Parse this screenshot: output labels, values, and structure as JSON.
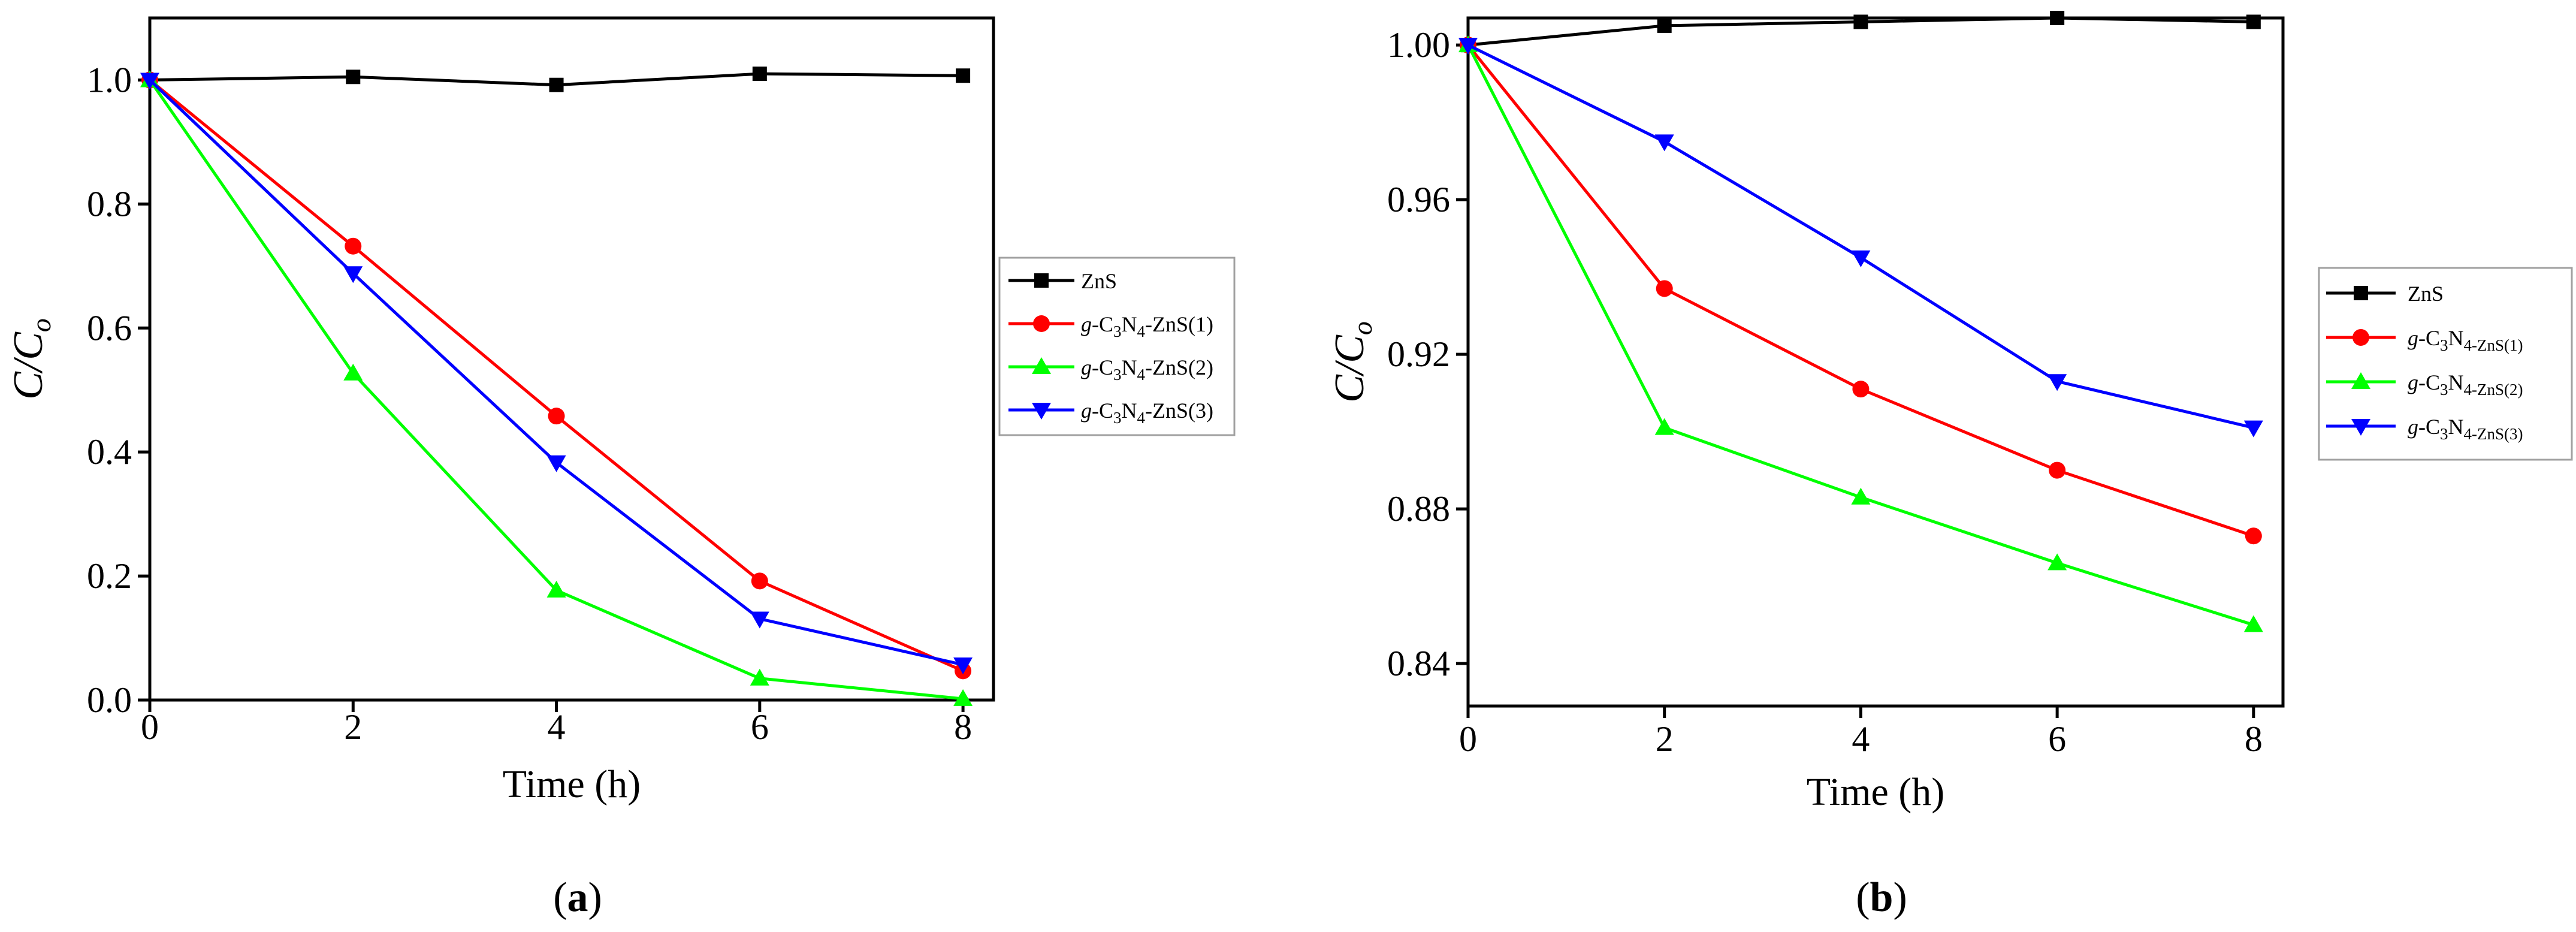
{
  "chart_data": [
    {
      "type": "line",
      "panel_label": "a",
      "title": "",
      "xlabel": "Time (h)",
      "ylabel": {
        "base": "C/C",
        "sub": "o"
      },
      "xlim": [
        0,
        8.3
      ],
      "ylim": [
        0,
        1.1
      ],
      "xticks": [
        0,
        2,
        4,
        6,
        8
      ],
      "xtick_labels": [
        "0",
        "2",
        "4",
        "6",
        "8"
      ],
      "yticks": [
        0,
        0.2,
        0.4,
        0.6,
        0.8,
        1.0
      ],
      "ytick_labels": [
        "0.0",
        "0.2",
        "0.4",
        "0.6",
        "0.8",
        "1.0"
      ],
      "x": [
        0,
        2,
        4,
        6,
        8
      ],
      "series": [
        {
          "name": "ZnS",
          "color": "#000000",
          "marker": "square",
          "values": [
            1.0,
            1.005,
            0.992,
            1.01,
            1.007
          ]
        },
        {
          "name": "g-C3N4-ZnS(1)",
          "color": "#ff0000",
          "marker": "circle",
          "values": [
            1.0,
            0.732,
            0.458,
            0.192,
            0.047
          ]
        },
        {
          "name": "g-C3N4-ZnS(2)",
          "color": "#00ff00",
          "marker": "triangle-up",
          "values": [
            1.0,
            0.527,
            0.177,
            0.035,
            0.002
          ]
        },
        {
          "name": "g-C3N4-ZnS(3)",
          "color": "#0000ff",
          "marker": "triangle-down",
          "values": [
            1.0,
            0.688,
            0.383,
            0.131,
            0.057
          ]
        }
      ],
      "legend_position": "right",
      "legend_labels": [
        {
          "p": "",
          "b": "ZnS",
          "s1": "",
          "m": "",
          "s2": "",
          "e": ""
        },
        {
          "p": "g",
          "b": "-C",
          "s1": "3",
          "m": "N",
          "s2": "4",
          "e": "-ZnS(1)"
        },
        {
          "p": "g",
          "b": "-C",
          "s1": "3",
          "m": "N",
          "s2": "4",
          "e": "-ZnS(2)"
        },
        {
          "p": "g",
          "b": "-C",
          "s1": "3",
          "m": "N",
          "s2": "4",
          "e": "-ZnS(3)"
        }
      ]
    },
    {
      "type": "line",
      "panel_label": "b",
      "title": "",
      "xlabel": "Time (h)",
      "ylabel": {
        "base": "C/C",
        "sub": "o"
      },
      "xlim": [
        0,
        8.3
      ],
      "ylim": [
        0.829,
        1.007
      ],
      "xticks": [
        0,
        2,
        4,
        6,
        8
      ],
      "xtick_labels": [
        "0",
        "2",
        "4",
        "6",
        "8"
      ],
      "yticks": [
        0.84,
        0.88,
        0.92,
        0.96,
        1.0
      ],
      "ytick_labels": [
        "0.84",
        "0.88",
        "0.92",
        "0.96",
        "1.00"
      ],
      "x": [
        0,
        2,
        4,
        6,
        8
      ],
      "series": [
        {
          "name": "ZnS",
          "color": "#000000",
          "marker": "square",
          "values": [
            1.0,
            1.005,
            1.006,
            1.007,
            1.006
          ]
        },
        {
          "name": "g-C3N4-ZnS(1)",
          "color": "#ff0000",
          "marker": "circle",
          "values": [
            1.0,
            0.937,
            0.911,
            0.89,
            0.873
          ]
        },
        {
          "name": "g-C3N4-ZnS(2)",
          "color": "#00ff00",
          "marker": "triangle-up",
          "values": [
            1.0,
            0.901,
            0.883,
            0.866,
            0.85
          ]
        },
        {
          "name": "g-C3N4-ZnS(3)",
          "color": "#0000ff",
          "marker": "triangle-down",
          "values": [
            1.0,
            0.975,
            0.945,
            0.913,
            0.901
          ]
        }
      ],
      "legend_position": "right",
      "legend_labels": [
        {
          "p": "",
          "b": "ZnS",
          "s1": "",
          "m": "",
          "s2": "",
          "e": ""
        },
        {
          "p": "g",
          "b": "-C",
          "s1": "3",
          "m": "N",
          "s2": "4-ZnS(1)",
          "e": ""
        },
        {
          "p": "g",
          "b": "-C",
          "s1": "3",
          "m": "N",
          "s2": "4-ZnS(2)",
          "e": ""
        },
        {
          "p": "g",
          "b": "-C",
          "s1": "3",
          "m": "N",
          "s2": "4-ZnS(3)",
          "e": ""
        }
      ]
    }
  ]
}
